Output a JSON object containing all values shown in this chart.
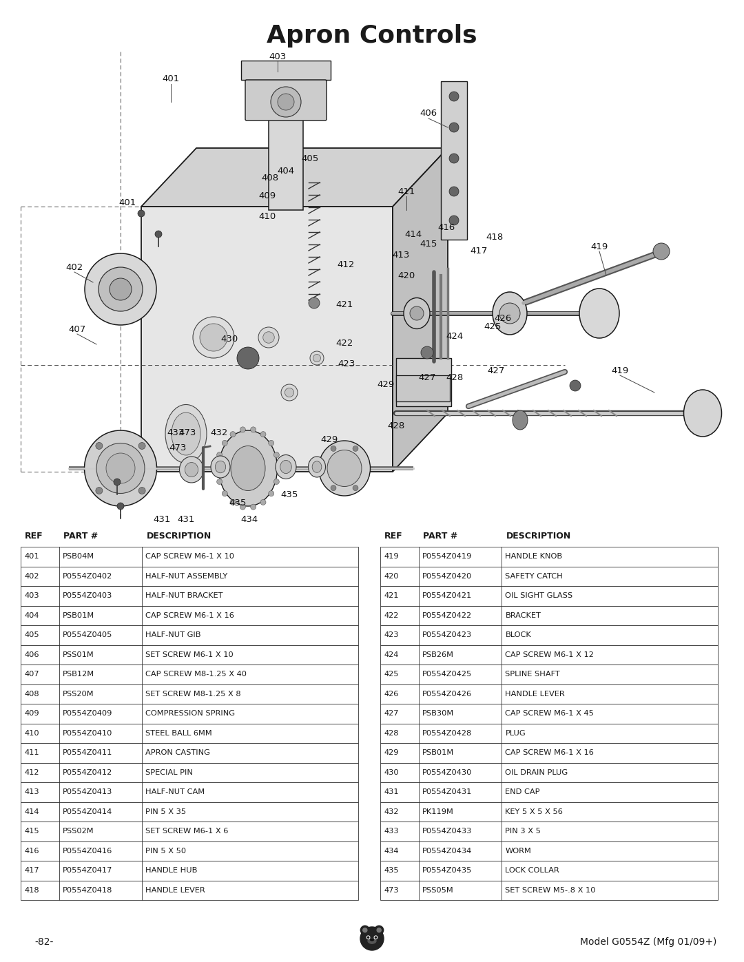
{
  "title": "Apron Controls",
  "title_fontsize": 26,
  "title_fontweight": "bold",
  "background_color": "#ffffff",
  "text_color": "#1a1a1a",
  "page_number": "-82-",
  "model_text": "Model G0554Z (Mfg 01/09+)",
  "table_left": [
    [
      "REF",
      "PART #",
      "DESCRIPTION"
    ],
    [
      "401",
      "PSB04M",
      "CAP SCREW M6-1 X 10"
    ],
    [
      "402",
      "P0554Z0402",
      "HALF-NUT ASSEMBLY"
    ],
    [
      "403",
      "P0554Z0403",
      "HALF-NUT BRACKET"
    ],
    [
      "404",
      "PSB01M",
      "CAP SCREW M6-1 X 16"
    ],
    [
      "405",
      "P0554Z0405",
      "HALF-NUT GIB"
    ],
    [
      "406",
      "PSS01M",
      "SET SCREW M6-1 X 10"
    ],
    [
      "407",
      "PSB12M",
      "CAP SCREW M8-1.25 X 40"
    ],
    [
      "408",
      "PSS20M",
      "SET SCREW M8-1.25 X 8"
    ],
    [
      "409",
      "P0554Z0409",
      "COMPRESSION SPRING"
    ],
    [
      "410",
      "P0554Z0410",
      "STEEL BALL 6MM"
    ],
    [
      "411",
      "P0554Z0411",
      "APRON CASTING"
    ],
    [
      "412",
      "P0554Z0412",
      "SPECIAL PIN"
    ],
    [
      "413",
      "P0554Z0413",
      "HALF-NUT CAM"
    ],
    [
      "414",
      "P0554Z0414",
      "PIN 5 X 35"
    ],
    [
      "415",
      "PSS02M",
      "SET SCREW M6-1 X 6"
    ],
    [
      "416",
      "P0554Z0416",
      "PIN 5 X 50"
    ],
    [
      "417",
      "P0554Z0417",
      "HANDLE HUB"
    ],
    [
      "418",
      "P0554Z0418",
      "HANDLE LEVER"
    ]
  ],
  "table_right": [
    [
      "REF",
      "PART #",
      "DESCRIPTION"
    ],
    [
      "419",
      "P0554Z0419",
      "HANDLE KNOB"
    ],
    [
      "420",
      "P0554Z0420",
      "SAFETY CATCH"
    ],
    [
      "421",
      "P0554Z0421",
      "OIL SIGHT GLASS"
    ],
    [
      "422",
      "P0554Z0422",
      "BRACKET"
    ],
    [
      "423",
      "P0554Z0423",
      "BLOCK"
    ],
    [
      "424",
      "PSB26M",
      "CAP SCREW M6-1 X 12"
    ],
    [
      "425",
      "P0554Z0425",
      "SPLINE SHAFT"
    ],
    [
      "426",
      "P0554Z0426",
      "HANDLE LEVER"
    ],
    [
      "427",
      "PSB30M",
      "CAP SCREW M6-1 X 45"
    ],
    [
      "428",
      "P0554Z0428",
      "PLUG"
    ],
    [
      "429",
      "PSB01M",
      "CAP SCREW M6-1 X 16"
    ],
    [
      "430",
      "P0554Z0430",
      "OIL DRAIN PLUG"
    ],
    [
      "431",
      "P0554Z0431",
      "END CAP"
    ],
    [
      "432",
      "PK119M",
      "KEY 5 X 5 X 56"
    ],
    [
      "433",
      "P0554Z0433",
      "PIN 3 X 5"
    ],
    [
      "434",
      "P0554Z0434",
      "WORM"
    ],
    [
      "435",
      "P0554Z0435",
      "LOCK COLLAR"
    ],
    [
      "473",
      "PSS05M",
      "SET SCREW M5-.8 X 10"
    ]
  ]
}
